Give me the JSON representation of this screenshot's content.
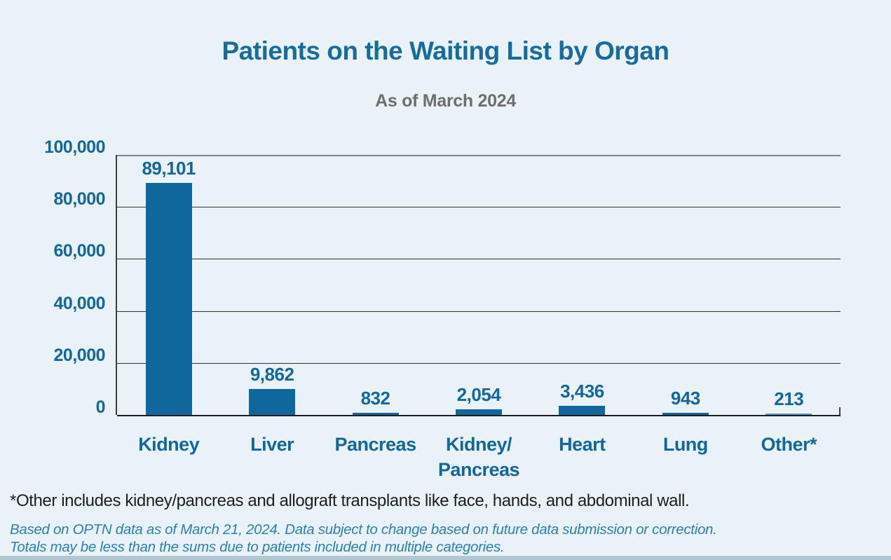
{
  "chart_data": {
    "type": "bar",
    "title": "Patients on the Waiting List by Organ",
    "subtitle": "As of March 2024",
    "categories": [
      "Kidney",
      "Liver",
      "Pancreas",
      "Kidney/Pancreas",
      "Heart",
      "Lung",
      "Other*"
    ],
    "category_lines": [
      [
        "Kidney"
      ],
      [
        "Liver"
      ],
      [
        "Pancreas"
      ],
      [
        "Kidney/",
        "Pancreas"
      ],
      [
        "Heart"
      ],
      [
        "Lung"
      ],
      [
        "Other*"
      ]
    ],
    "values": [
      89101,
      9862,
      832,
      2054,
      3436,
      943,
      213
    ],
    "value_labels": [
      "89,101",
      "9,862",
      "832",
      "2,054",
      "3,436",
      "943",
      "213"
    ],
    "ylim": [
      0,
      100000
    ],
    "ytick_labels": [
      "100,000",
      "80,000",
      "60,000",
      "40,000",
      "20,000",
      "0"
    ],
    "grid": "horizontal-every-20000",
    "legend": "none",
    "colors": {
      "bar": "#0f679b",
      "last_bar": "#4e97c9",
      "title": "#176b9d",
      "subtitle": "#6d6e71",
      "labels": "#14679a",
      "background": "#e9f3f7"
    }
  },
  "footnotes": {
    "asterisk": "*Other includes kidney/pancreas and allograft transplants like face, hands, and abdominal wall.",
    "source_line1": "Based on OPTN data as of March 21, 2024. Data subject to change based on future data submission or correction.",
    "source_line2": "Totals may be less than the sums due to patients included in multiple categories."
  }
}
